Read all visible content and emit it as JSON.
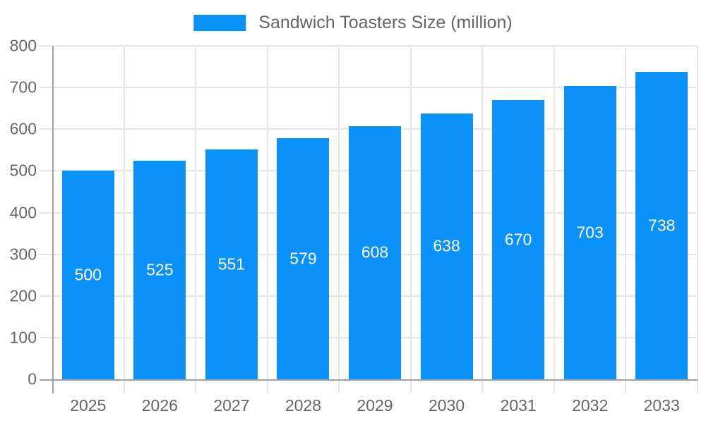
{
  "chart_data": {
    "type": "bar",
    "title": "Sandwich Toasters Size (million)",
    "legend_position": "top",
    "categories": [
      "2025",
      "2026",
      "2027",
      "2028",
      "2029",
      "2030",
      "2031",
      "2032",
      "2033"
    ],
    "values": [
      500,
      525,
      551,
      579,
      608,
      638,
      670,
      703,
      738
    ],
    "bar_labels": [
      "500",
      "525",
      "551",
      "579",
      "608",
      "638",
      "670",
      "703",
      "738"
    ],
    "xlabel": "",
    "ylabel": "",
    "ylim": [
      0,
      800
    ],
    "ytick_step": 100,
    "ytick_labels": [
      "0",
      "100",
      "200",
      "300",
      "400",
      "500",
      "600",
      "700",
      "800"
    ],
    "grid": true,
    "colors": {
      "bar": "#0A91FA",
      "bar_label_text": "#ffffff",
      "axis_line": "#a0a0a0",
      "gridline": "#e6e6e6",
      "tick_text": "#666666",
      "legend_text": "#666666",
      "background": "#ffffff"
    }
  }
}
